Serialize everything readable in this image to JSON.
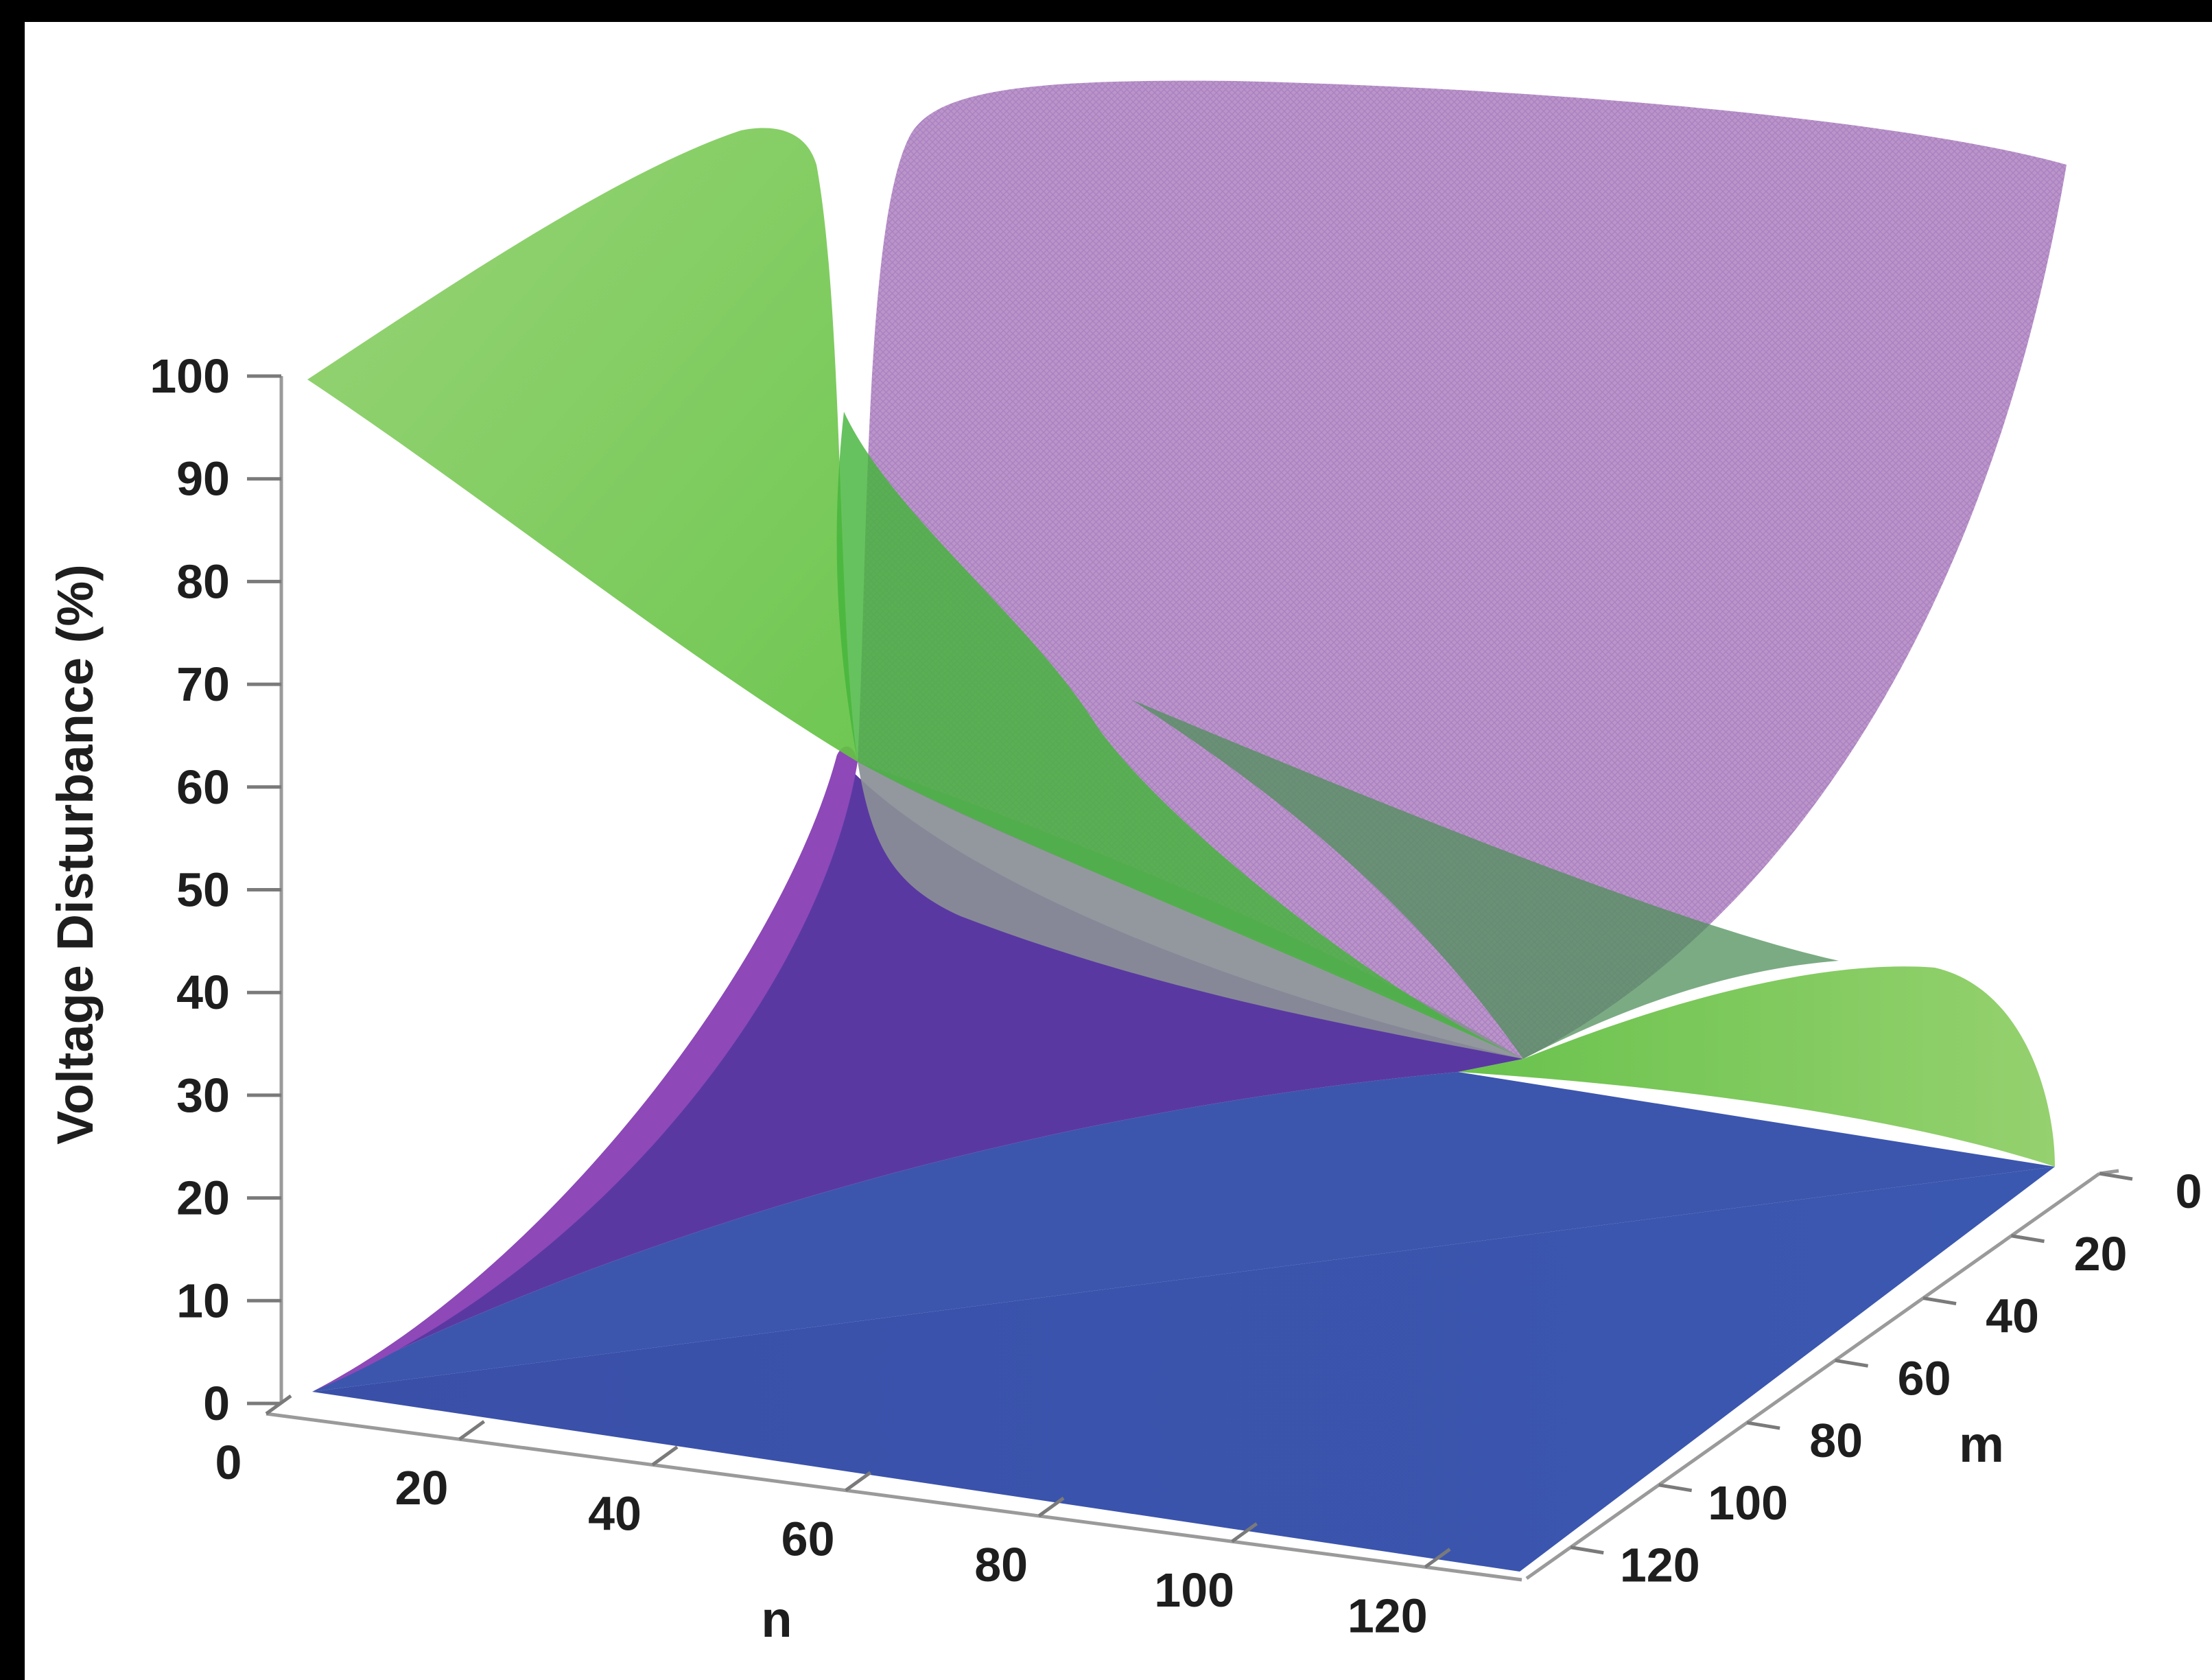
{
  "chart_data": {
    "type": "surface",
    "title": "",
    "zlabel": "Voltage Disturbance (%)",
    "xlabel": "n",
    "ylabel": "m",
    "x_ticks": [
      "0",
      "20",
      "40",
      "60",
      "80",
      "100",
      "120"
    ],
    "y_ticks": [
      "0",
      "20",
      "40",
      "60",
      "80",
      "100",
      "120"
    ],
    "z_ticks": [
      "0",
      "10",
      "20",
      "30",
      "40",
      "50",
      "60",
      "70",
      "80",
      "90",
      "100"
    ],
    "xlim": [
      0,
      130
    ],
    "ylim": [
      0,
      130
    ],
    "zlim": [
      0,
      100
    ],
    "grid": false,
    "series": [
      {
        "color": "#3b55ad",
        "corner_values": {
          "n0_m0": 0,
          "n130_m0": 0,
          "n0_m130": 0,
          "n130_m130": 0
        }
      },
      {
        "color": "#4fbf3a",
        "corner_values": {
          "n0_m0": 98,
          "n130_m0": 0,
          "n130_m130": 0
        }
      },
      {
        "color": "#a66dc4",
        "corner_values": {
          "n0_m0": 0,
          "n130_m0": 100,
          "n130_m130": 0
        }
      }
    ]
  }
}
